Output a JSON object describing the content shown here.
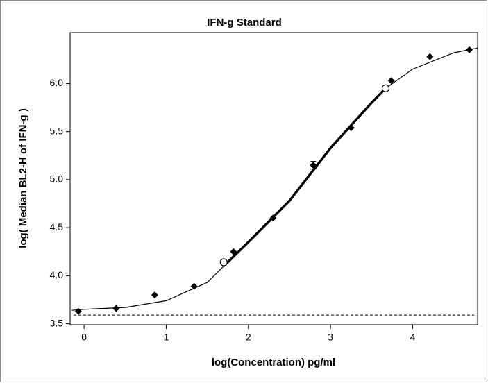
{
  "chart_data": {
    "type": "scatter",
    "title": "IFN-g Standard",
    "x_label": "log(Concentration) pg/ml",
    "y_label": "log( Median BL2-H of IFN-g )",
    "xlim": [
      -0.17,
      4.79
    ],
    "ylim": [
      3.49,
      6.53
    ],
    "xticks": [
      0,
      1,
      2,
      3,
      4
    ],
    "yticks": [
      3.5,
      {
        "value": 4,
        "label": "4.0"
      },
      4.5,
      {
        "value": 5,
        "label": "5.0"
      },
      5.5,
      {
        "value": 6,
        "label": "6.0"
      }
    ],
    "grid": false,
    "color": "#000000",
    "series": [
      {
        "marker": "diamond",
        "x": [
          -0.07,
          0.39,
          0.86,
          1.34,
          1.82,
          2.3,
          2.79,
          3.25,
          3.74,
          4.21,
          4.69
        ],
        "values": [
          3.63,
          3.66,
          3.8,
          3.89,
          4.25,
          4.6,
          5.15,
          5.54,
          6.03,
          6.28,
          6.35
        ],
        "errors": [
          null,
          null,
          null,
          null,
          null,
          null,
          0.04,
          null,
          null,
          null,
          null
        ]
      },
      {
        "marker": "circle",
        "x": [
          1.7,
          3.67
        ],
        "values": [
          4.14,
          5.95
        ]
      }
    ],
    "curves": [
      {
        "x": [
          -0.15,
          0,
          0.5,
          1.0,
          1.5,
          1.7,
          2.0,
          2.5,
          3.0,
          3.5,
          3.67,
          4.0,
          4.5,
          4.79
        ],
        "values": [
          3.64,
          3.65,
          3.67,
          3.74,
          3.93,
          4.1,
          4.35,
          4.78,
          5.33,
          5.8,
          5.95,
          6.15,
          6.32,
          6.37
        ]
      },
      {
        "x": [
          1.7,
          2.0,
          2.5,
          3.0,
          3.5,
          3.67
        ],
        "values": [
          4.1,
          4.35,
          4.78,
          5.33,
          5.8,
          5.95
        ]
      }
    ],
    "baseline": 3.59
  }
}
